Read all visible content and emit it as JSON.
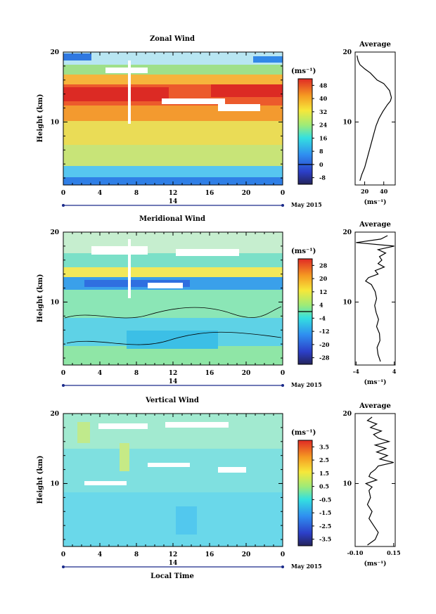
{
  "chart_data": [
    {
      "type": "heatmap",
      "title": "Zonal Wind",
      "ylabel": "Height (km)",
      "yticks": [
        "10",
        "20"
      ],
      "ylim": [
        1,
        20
      ],
      "xticks": [
        "0",
        "4",
        "8",
        "12",
        "16",
        "20",
        "0"
      ],
      "xlim": [
        0,
        24
      ],
      "date_label": "14",
      "month_label": "May 2015",
      "colorbar": {
        "unit_label": "(ms⁻¹)",
        "ticks": [
          "48",
          "40",
          "32",
          "24",
          "16",
          "8",
          "0",
          "-8"
        ],
        "range": [
          -12,
          52
        ],
        "zero_line": 0
      },
      "profile": {
        "title": "Average",
        "xticks": [
          "20",
          "40"
        ],
        "xlim": [
          10,
          52
        ],
        "xlabel": "(ms⁻¹)",
        "height": [
          1.6,
          2.5,
          3.5,
          4.5,
          5.5,
          6.5,
          7.5,
          8.5,
          9.5,
          10.5,
          11.5,
          12.5,
          13.0,
          13.5,
          14.5,
          15.5,
          16.0,
          17.0,
          17.6,
          18.2,
          18.8,
          19.5
        ],
        "value": [
          15,
          17,
          20,
          22,
          24,
          26,
          28,
          30,
          32,
          35,
          39,
          44,
          47,
          48,
          46,
          40,
          33,
          26,
          20,
          15,
          13,
          12
        ]
      }
    },
    {
      "type": "heatmap",
      "title": "Meridional Wind",
      "ylabel": "Height (km)",
      "yticks": [
        "10",
        "20"
      ],
      "ylim": [
        1,
        20
      ],
      "xticks": [
        "0",
        "4",
        "8",
        "12",
        "16",
        "20",
        "0"
      ],
      "xlim": [
        0,
        24
      ],
      "date_label": "14",
      "month_label": "May 2015",
      "colorbar": {
        "unit_label": "(ms⁻¹)",
        "ticks": [
          "28",
          "20",
          "12",
          "4",
          "-4",
          "-12",
          "-20",
          "-28"
        ],
        "range": [
          -32,
          32
        ],
        "zero_line": 0
      },
      "profile": {
        "title": "Average",
        "xticks": [
          "-4",
          "4"
        ],
        "xlim": [
          -4.2,
          4.2
        ],
        "xlabel": "(ms⁻¹)",
        "height": [
          1.5,
          2.5,
          3.5,
          4.5,
          5.5,
          6.5,
          7.5,
          8.5,
          9.5,
          10.5,
          11.5,
          12.5,
          13.0,
          13.5,
          14.0,
          14.5,
          15.0,
          15.5,
          16.0,
          16.5,
          17.0,
          17.5,
          18.0,
          18.5,
          19.0,
          19.5
        ],
        "value": [
          1.1,
          0.6,
          0.4,
          1.0,
          0.9,
          0.3,
          0.7,
          0.2,
          -0.1,
          0.3,
          0.0,
          -0.8,
          -2.0,
          -1.4,
          0.6,
          0.0,
          1.9,
          0.6,
          1.4,
          0.9,
          2.2,
          0.6,
          4.0,
          -4.0,
          1.2,
          2.6
        ]
      }
    },
    {
      "type": "heatmap",
      "title": "Vertical Wind",
      "ylabel": "Height (km)",
      "yticks": [
        "10",
        "20"
      ],
      "ylim": [
        1,
        20
      ],
      "xticks": [
        "0",
        "4",
        "8",
        "12",
        "16",
        "20",
        "0"
      ],
      "xlim": [
        0,
        24
      ],
      "date_label": "14",
      "month_label": "May 2015",
      "xlabel": "Local Time",
      "colorbar": {
        "unit_label": "(ms⁻¹)",
        "ticks": [
          "3.5",
          "2.5",
          "1.5",
          "0.5",
          "-0.5",
          "-1.5",
          "-2.5",
          "-3.5"
        ],
        "range": [
          -4,
          4
        ],
        "zero_line": null
      },
      "profile": {
        "title": "Average",
        "xticks": [
          "-0.10",
          "0.15"
        ],
        "xlim": [
          -0.1,
          0.16
        ],
        "xlabel": "(ms⁻¹)",
        "height": [
          1.2,
          2.0,
          3.0,
          4.0,
          5.0,
          6.0,
          7.0,
          8.0,
          9.0,
          9.5,
          10.0,
          10.5,
          11.0,
          11.5,
          12.0,
          12.5,
          13.0,
          13.5,
          14.0,
          14.5,
          15.0,
          15.5,
          16.0,
          16.5,
          17.0,
          17.5,
          18.0,
          18.5,
          19.0,
          19.5
        ],
        "value": [
          -0.02,
          0.03,
          0.05,
          0.02,
          -0.01,
          0.01,
          -0.02,
          0.0,
          -0.01,
          0.01,
          -0.03,
          0.04,
          -0.01,
          0.0,
          0.03,
          0.05,
          0.15,
          0.06,
          0.11,
          0.04,
          0.1,
          0.03,
          0.12,
          0.05,
          0.02,
          0.07,
          0.0,
          0.04,
          -0.02,
          0.01
        ]
      }
    }
  ]
}
